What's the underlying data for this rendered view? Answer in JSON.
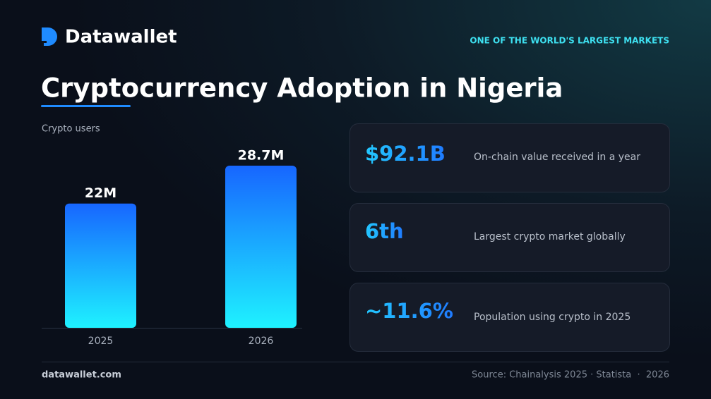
{
  "brand": "Datawallet",
  "tagline": "ONE OF THE WORLD'S LARGEST MARKETS",
  "title": "Cryptocurrency Adoption in Nigeria",
  "chart_data": {
    "type": "bar",
    "subtitle": "Crypto users",
    "categories": [
      "2025",
      "2026"
    ],
    "values": [
      22,
      28.7
    ],
    "value_labels": [
      "22M",
      "28.7M"
    ]
  },
  "stats": [
    {
      "value": "$92.1B",
      "label": "On-chain value received in a year"
    },
    {
      "value": "6th",
      "label": "Largest crypto market globally"
    },
    {
      "value": "~11.6%",
      "label": "Population using crypto in 2025"
    }
  ],
  "footer": {
    "site": "datawallet.com",
    "source": "Source: Chainalysis 2025 · Statista  ·  2026"
  }
}
